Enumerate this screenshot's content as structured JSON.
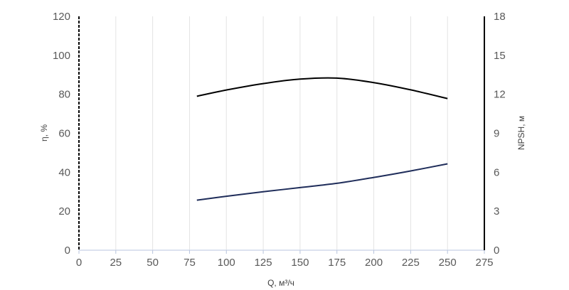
{
  "chart_data": {
    "type": "line",
    "title": "",
    "xlabel": "Q, м³/ч",
    "ylabel": "η, %",
    "y2label": "NPSH, м",
    "xlim": [
      0,
      275
    ],
    "ylim": [
      0,
      120
    ],
    "y2lim": [
      0,
      18
    ],
    "x_ticks": [
      "0",
      "25",
      "50",
      "75",
      "100",
      "125",
      "150",
      "175",
      "200",
      "225",
      "250",
      "275"
    ],
    "y_ticks": [
      "0",
      "20",
      "40",
      "60",
      "80",
      "100",
      "120"
    ],
    "y2_ticks": [
      "0",
      "3",
      "6",
      "9",
      "12",
      "15",
      "18"
    ],
    "grid": "vertical",
    "series": [
      {
        "axis": "left",
        "color": "#000000",
        "x": [
          80,
          100,
          125,
          150,
          175,
          200,
          225,
          250
        ],
        "y": [
          79.0,
          82.2,
          85.5,
          87.8,
          88.3,
          86.0,
          82.3,
          77.8
        ]
      },
      {
        "axis": "right",
        "color": "#1f2d5a",
        "x": [
          80,
          100,
          125,
          150,
          175,
          200,
          225,
          250
        ],
        "y": [
          3.85,
          4.15,
          4.5,
          4.82,
          5.15,
          5.6,
          6.1,
          6.65
        ]
      }
    ]
  }
}
